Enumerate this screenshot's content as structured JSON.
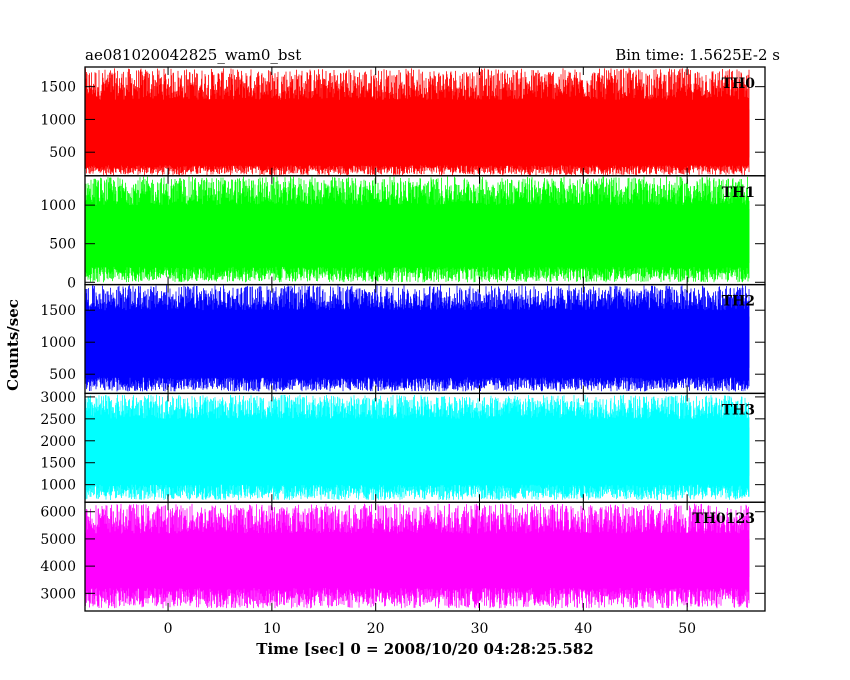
{
  "chart_data": {
    "type": "line",
    "title": "ae081020042825_wam0_bst",
    "subtitle": "Bin time: 1.5625E-2 s",
    "xlabel": "Time [sec] 0 = 2008/10/20 04:28:25.582",
    "ylabel": "Counts/sec",
    "xlim": [
      -8,
      57.5
    ],
    "x_ticks": [
      0,
      10,
      20,
      30,
      40,
      50
    ],
    "x_data_range": [
      -8,
      56
    ],
    "grid": false,
    "legend": "none",
    "panels": [
      {
        "name": "TH0",
        "color": "#ff0000",
        "ylim": [
          140,
          1800
        ],
        "y_ticks": [
          500,
          1000,
          1500
        ],
        "band_low": [
          150,
          300
        ],
        "band_high": [
          1300,
          1780
        ],
        "core": [
          420,
          1150
        ]
      },
      {
        "name": "TH1",
        "color": "#00ff00",
        "ylim": [
          -30,
          1380
        ],
        "y_ticks": [
          0,
          500,
          1000
        ],
        "band_low": [
          0,
          200
        ],
        "band_high": [
          1000,
          1370
        ],
        "core": [
          250,
          950
        ]
      },
      {
        "name": "TH2",
        "color": "#0000ff",
        "ylim": [
          200,
          1900
        ],
        "y_ticks": [
          500,
          1000,
          1500
        ],
        "band_low": [
          230,
          450
        ],
        "band_high": [
          1500,
          1890
        ],
        "core": [
          600,
          1400
        ]
      },
      {
        "name": "TH3",
        "color": "#00ffff",
        "ylim": [
          600,
          3080
        ],
        "y_ticks": [
          1000,
          1500,
          2000,
          2500,
          3000
        ],
        "band_low": [
          650,
          1000
        ],
        "band_high": [
          2500,
          3050
        ],
        "core": [
          1200,
          2300
        ]
      },
      {
        "name": "TH0123",
        "color": "#ff00ff",
        "ylim": [
          2350,
          6350
        ],
        "y_ticks": [
          3000,
          4000,
          5000,
          6000
        ],
        "band_low": [
          2450,
          3200
        ],
        "band_high": [
          5200,
          6300
        ],
        "core": [
          3600,
          5000
        ]
      }
    ]
  }
}
